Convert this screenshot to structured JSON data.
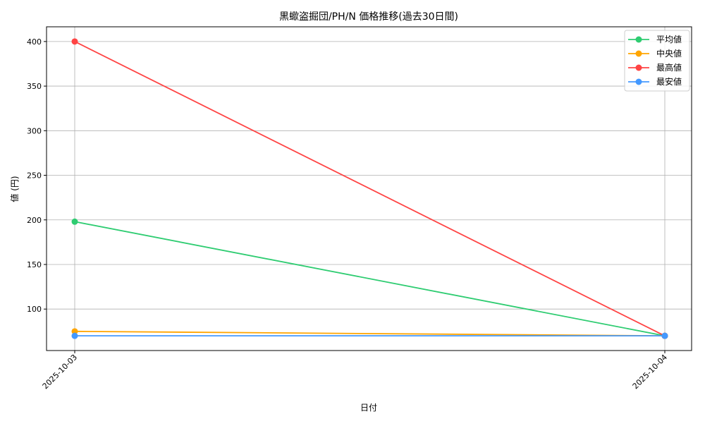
{
  "chart_data": {
    "type": "line",
    "title": "黒蠍盗掘団/PH/N 価格推移(過去30日間)",
    "xlabel": "日付",
    "ylabel": "値 (円)",
    "categories": [
      "2025-10-03",
      "2025-10-04"
    ],
    "ylim": [
      53.5,
      416.5
    ],
    "yticks": [
      100,
      150,
      200,
      250,
      300,
      350,
      400
    ],
    "grid": true,
    "legend_position": "top-right",
    "series": [
      {
        "name": "平均値",
        "color": "#2ecc71",
        "values": [
          198,
          70
        ]
      },
      {
        "name": "中央値",
        "color": "#ffa500",
        "values": [
          75,
          70
        ]
      },
      {
        "name": "最高値",
        "color": "#ff4444",
        "values": [
          400,
          70
        ]
      },
      {
        "name": "最安値",
        "color": "#4499ff",
        "values": [
          70,
          70
        ]
      }
    ]
  }
}
